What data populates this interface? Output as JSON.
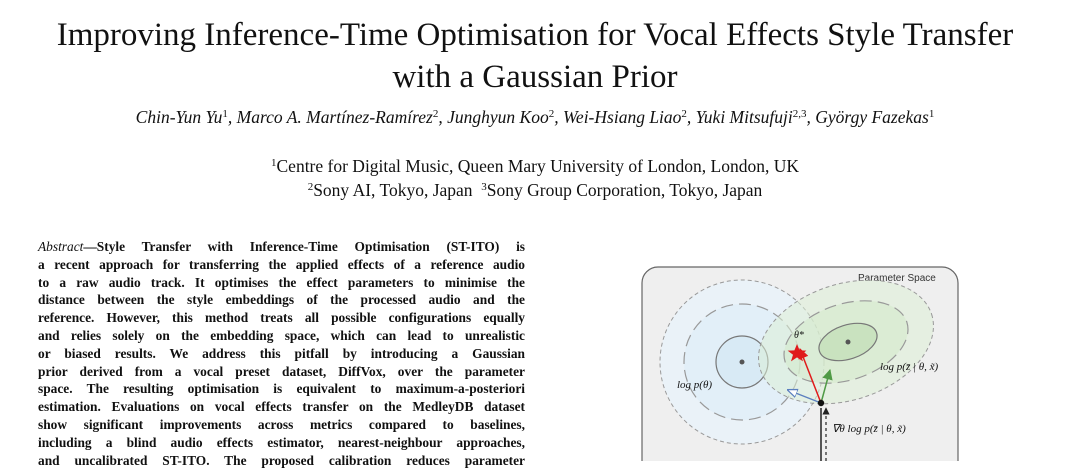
{
  "title": {
    "line1": "Improving Inference-Time Optimisation for Vocal Effects Style Transfer",
    "line2": "with a Gaussian Prior"
  },
  "authors": [
    {
      "name": "Chin-Yun Yu",
      "aff": "1"
    },
    {
      "name": "Marco A. Martínez-Ramírez",
      "aff": "2"
    },
    {
      "name": "Junghyun Koo",
      "aff": "2"
    },
    {
      "name": "Wei-Hsiang Liao",
      "aff": "2"
    },
    {
      "name": "Yuki Mitsufuji",
      "aff": "2,3"
    },
    {
      "name": "György Fazekas",
      "aff": "1"
    }
  ],
  "affiliations": {
    "a1_mark": "1",
    "a1": "Centre for Digital Music, Queen Mary University of London, London, UK",
    "a2_mark": "2",
    "a2": "Sony AI, Tokyo, Japan",
    "a3_mark": "3",
    "a3": "Sony Group Corporation, Tokyo, Japan"
  },
  "abstract": {
    "lead": "Abstract",
    "lines": [
      "—Style Transfer with Inference-Time Optimisation (ST-ITO) is",
      "a recent approach for transferring the applied effects of a reference audio",
      "to a raw audio track. It optimises the effect parameters to minimise the",
      "distance between the style embeddings of the processed audio and the",
      "reference. However, this method treats all possible configurations equally",
      "and relies solely on the embedding space, which can lead to unrealistic",
      "or biased results. We address this pitfall by introducing a Gaussian",
      "prior derived from a vocal preset dataset, DiffVox, over the parameter",
      "space. The resulting optimisation is equivalent to maximum-a-posteriori",
      "estimation. Evaluations on vocal effects transfer on the MedleyDB dataset",
      "show significant improvements across metrics compared to baselines,",
      "including a blind audio effects estimator, nearest-neighbour approaches,",
      "and uncalibrated ST-ITO. The proposed calibration reduces parameter"
    ]
  },
  "figure": {
    "panel_label": "Parameter Space",
    "theta_star": "θ*",
    "prior_label": "log p(θ)",
    "likelihood_label": "log p(z̄ | θ, x̃)",
    "gradient_label": "∇θ log p(z̄ | θ, x̃)",
    "colors": {
      "prior_fill": "#e6f2fa",
      "likelihood_fill": "#e6f3e2",
      "star": "#e01b1b",
      "arrow_blue": "#5b7fbf",
      "arrow_green": "#4f9a45"
    }
  }
}
